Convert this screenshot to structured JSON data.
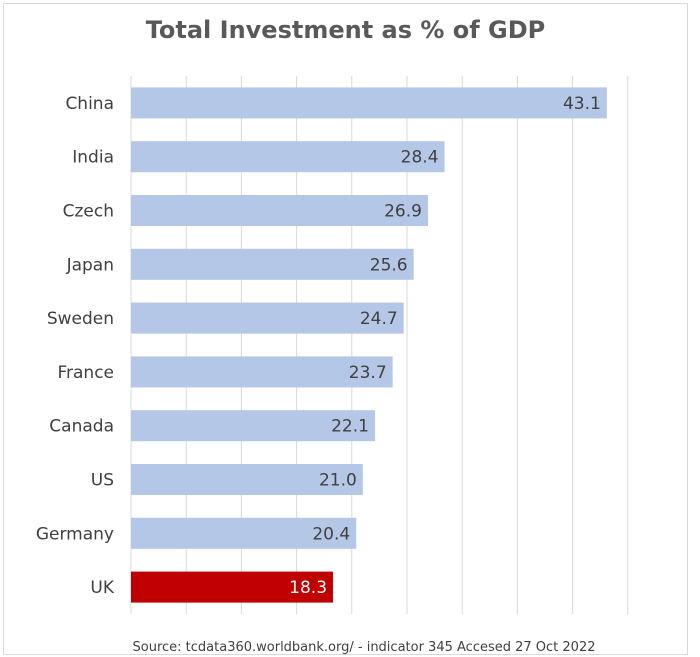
{
  "chart_data": {
    "type": "bar",
    "orientation": "horizontal",
    "title": "Total Investment as % of GDP",
    "categories": [
      "China",
      "India",
      "Czech",
      "Japan",
      "Sweden",
      "France",
      "Canada",
      "US",
      "Germany",
      "UK"
    ],
    "values": [
      43.1,
      28.4,
      26.9,
      25.6,
      24.7,
      23.7,
      22.1,
      21.0,
      20.4,
      18.3
    ],
    "value_labels": [
      "43.1",
      "28.4",
      "26.9",
      "25.6",
      "24.7",
      "23.7",
      "22.1",
      "21.0",
      "20.4",
      "18.3"
    ],
    "xlim": [
      0,
      45
    ],
    "grid": "vertical",
    "highlight_category": "UK",
    "colors": {
      "bar": "#b4c7e7",
      "highlight": "#c00000",
      "grid": "#d9d9d9",
      "label": "#404040",
      "highlight_label": "#ffffff"
    },
    "source": "Source: tcdata360.worldbank.org/ - indicator 345 Accesed 27 Oct 2022"
  }
}
